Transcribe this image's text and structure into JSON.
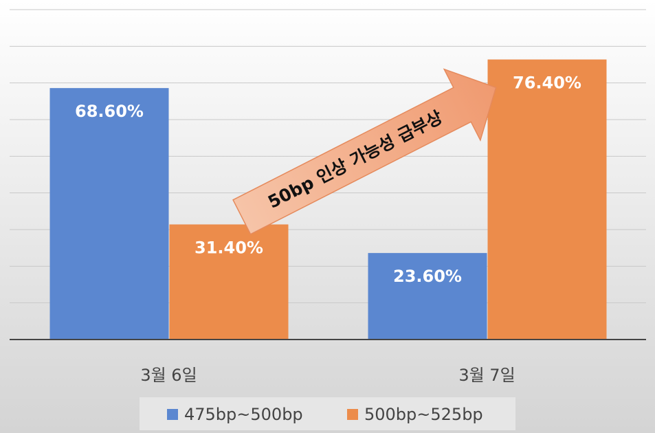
{
  "chart_data": {
    "type": "bar",
    "categories": [
      "3월 6일",
      "3월 7일"
    ],
    "series": [
      {
        "name": "475bp~500bp",
        "color": "#5b87d0",
        "values": [
          68.6,
          23.6
        ],
        "value_labels": [
          "68.60%",
          "23.60%"
        ]
      },
      {
        "name": "500bp~525bp",
        "color": "#ec8c4b",
        "values": [
          31.4,
          76.4
        ],
        "value_labels": [
          "31.40%",
          "76.40%"
        ]
      }
    ],
    "annotation": "50bp 인상 가능성 급부상",
    "ylim": [
      0,
      90
    ],
    "yticks": [
      0,
      10,
      20,
      30,
      40,
      50,
      60,
      70,
      80,
      90
    ],
    "grid": true
  }
}
